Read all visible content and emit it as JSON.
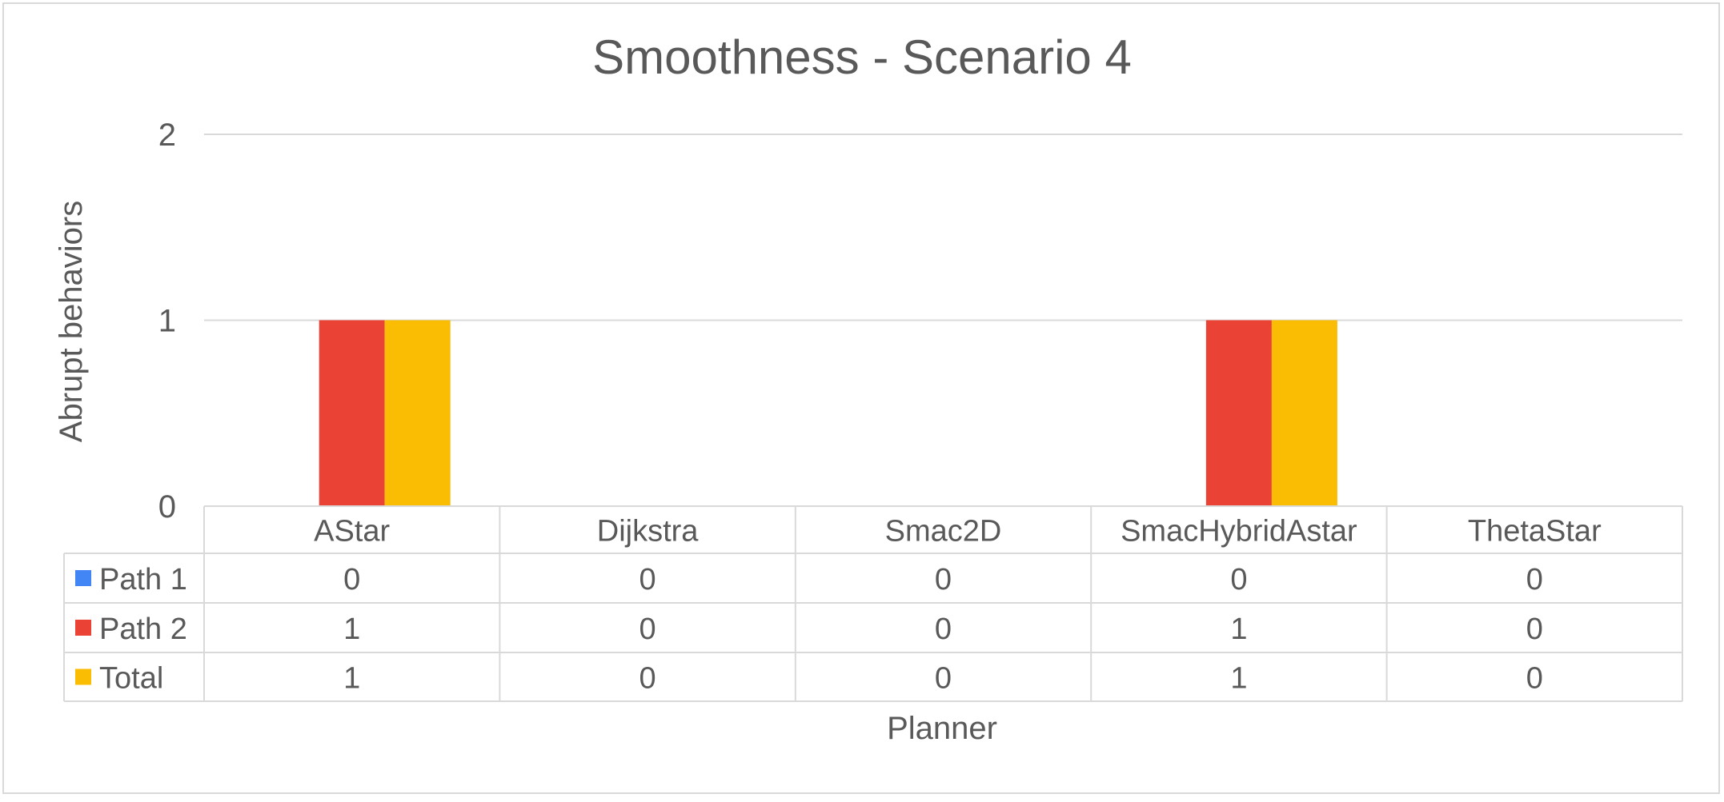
{
  "chart_data": {
    "type": "bar",
    "title": "Smoothness - Scenario 4",
    "xlabel": "Planner",
    "ylabel": "Abrupt behaviors",
    "ylim": [
      0,
      2
    ],
    "yticks": [
      0,
      1,
      2
    ],
    "grid": true,
    "legend": "data-table-left",
    "categories": [
      "AStar",
      "Dijkstra",
      "Smac2D",
      "SmacHybridAstar",
      "ThetaStar"
    ],
    "series": [
      {
        "name": "Path 1",
        "color": "#4285f4",
        "values": [
          0,
          0,
          0,
          0,
          0
        ]
      },
      {
        "name": "Path 2",
        "color": "#ea4335",
        "values": [
          1,
          0,
          0,
          1,
          0
        ]
      },
      {
        "name": "Total",
        "color": "#fbbc04",
        "values": [
          1,
          0,
          0,
          1,
          0
        ]
      }
    ]
  }
}
